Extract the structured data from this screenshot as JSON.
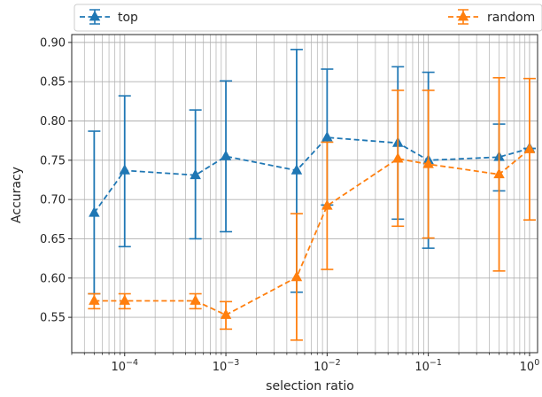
{
  "chart_data": {
    "type": "line",
    "title": "",
    "xlabel": "selection ratio",
    "ylabel": "Accuracy",
    "xscale": "log",
    "xlim": [
      3e-05,
      1.2
    ],
    "ylim": [
      0.505,
      0.91
    ],
    "grid": true,
    "legend_position": "top",
    "x_ticks": [
      {
        "value": 0.0001,
        "base": "10",
        "exp": "−4"
      },
      {
        "value": 0.001,
        "base": "10",
        "exp": "−3"
      },
      {
        "value": 0.01,
        "base": "10",
        "exp": "−2"
      },
      {
        "value": 0.1,
        "base": "10",
        "exp": "−1"
      },
      {
        "value": 1,
        "base": "10",
        "exp": "0"
      }
    ],
    "y_ticks": [
      "0.55",
      "0.60",
      "0.65",
      "0.70",
      "0.75",
      "0.80",
      "0.85",
      "0.90"
    ],
    "series": [
      {
        "name": "top",
        "color": "#1f77b4",
        "marker": "triangle-up",
        "linestyle": "dashed",
        "points": [
          {
            "x": 5e-05,
            "y": 0.683,
            "err_low": 0.58,
            "err_high": 0.787
          },
          {
            "x": 0.0001,
            "y": 0.737,
            "err_low": 0.64,
            "err_high": 0.832
          },
          {
            "x": 0.0005,
            "y": 0.731,
            "err_low": 0.65,
            "err_high": 0.814
          },
          {
            "x": 0.001,
            "y": 0.755,
            "err_low": 0.659,
            "err_high": 0.851
          },
          {
            "x": 0.005,
            "y": 0.737,
            "err_low": 0.582,
            "err_high": 0.891
          },
          {
            "x": 0.01,
            "y": 0.779,
            "err_low": 0.693,
            "err_high": 0.866
          },
          {
            "x": 0.05,
            "y": 0.772,
            "err_low": 0.675,
            "err_high": 0.869
          },
          {
            "x": 0.1,
            "y": 0.75,
            "err_low": 0.638,
            "err_high": 0.862
          },
          {
            "x": 0.5,
            "y": 0.754,
            "err_low": 0.711,
            "err_high": 0.796
          },
          {
            "x": 1.0,
            "y": 0.765,
            "err_low": 0.765,
            "err_high": 0.765
          }
        ]
      },
      {
        "name": "random",
        "color": "#ff7f0e",
        "marker": "triangle-up",
        "linestyle": "dashed",
        "points": [
          {
            "x": 5e-05,
            "y": 0.571,
            "err_low": 0.561,
            "err_high": 0.58
          },
          {
            "x": 0.0001,
            "y": 0.571,
            "err_low": 0.561,
            "err_high": 0.58
          },
          {
            "x": 0.0005,
            "y": 0.571,
            "err_low": 0.561,
            "err_high": 0.58
          },
          {
            "x": 0.001,
            "y": 0.553,
            "err_low": 0.535,
            "err_high": 0.57
          },
          {
            "x": 0.005,
            "y": 0.601,
            "err_low": 0.521,
            "err_high": 0.682
          },
          {
            "x": 0.01,
            "y": 0.692,
            "err_low": 0.611,
            "err_high": 0.773
          },
          {
            "x": 0.05,
            "y": 0.752,
            "err_low": 0.666,
            "err_high": 0.839
          },
          {
            "x": 0.1,
            "y": 0.745,
            "err_low": 0.651,
            "err_high": 0.839
          },
          {
            "x": 0.5,
            "y": 0.732,
            "err_low": 0.609,
            "err_high": 0.855
          },
          {
            "x": 1.0,
            "y": 0.764,
            "err_low": 0.674,
            "err_high": 0.854
          }
        ]
      }
    ]
  }
}
